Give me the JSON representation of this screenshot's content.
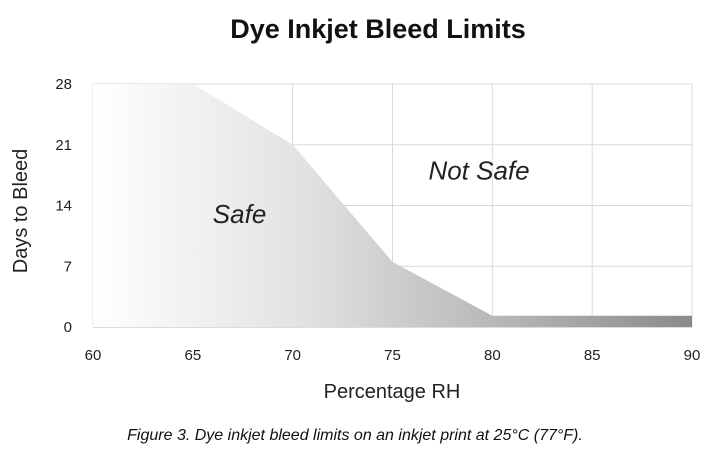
{
  "chart_data": {
    "type": "area",
    "title": "Dye Inkjet Bleed Limits",
    "xlabel": "Percentage RH",
    "ylabel": "Days to Bleed",
    "xlim": [
      60,
      90
    ],
    "ylim": [
      0,
      28
    ],
    "x_ticks": [
      "60",
      "65",
      "70",
      "75",
      "80",
      "85",
      "90"
    ],
    "y_ticks": [
      "0",
      "7",
      "14",
      "21",
      "28"
    ],
    "grid": true,
    "x": [
      60,
      65,
      70,
      75,
      80,
      90
    ],
    "series": [
      {
        "values": [
          28,
          28,
          21,
          7.5,
          1.3,
          1.3
        ]
      }
    ],
    "annotations": [
      {
        "text": "Safe",
        "x": 66,
        "y": 12
      },
      {
        "text": "Not Safe",
        "x": 76.8,
        "y": 17
      }
    ],
    "caption": "Figure 3. Dye inkjet bleed limits on an inkjet print at 25°C (77°F)."
  }
}
